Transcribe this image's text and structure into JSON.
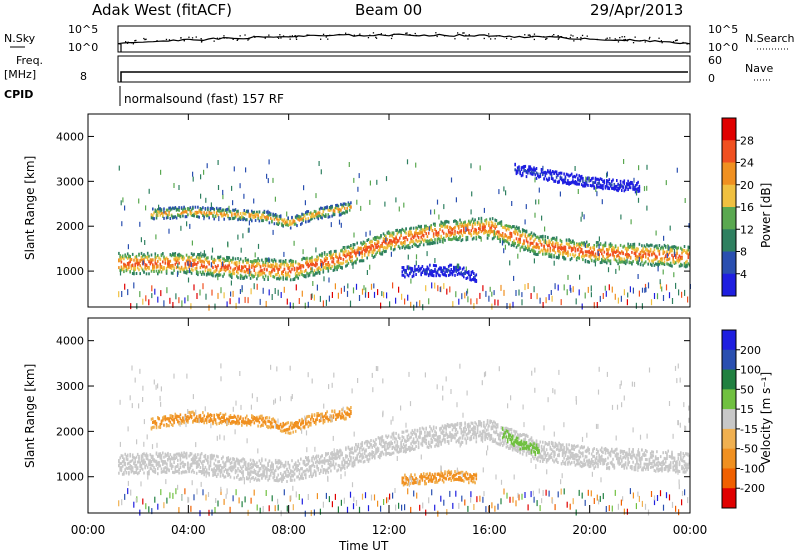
{
  "header": {
    "station": "Adak West (fitACF)",
    "beam": "Beam 00",
    "date": "29/Apr/2013"
  },
  "top_panels": {
    "nsky_label": "N.Sky",
    "nsky_ticks": [
      "10^5",
      "10^0"
    ],
    "nsearch_label": "N.Search",
    "nsearch_ticks": [
      "10^5",
      "10^0"
    ],
    "freq_label_1": "Freq.",
    "freq_label_2": "[MHz]",
    "freq_ticks": [
      "8"
    ],
    "nave_label": "Nave",
    "nave_ticks": [
      "60",
      "0"
    ],
    "cpid_label": "CPID",
    "cpid_text": "normalsound (fast) 157 RF"
  },
  "colors": {
    "power_scale": [
      "#1f1fe0",
      "#2a4fb0",
      "#2f8060",
      "#5aa850",
      "#f0c040",
      "#f09020",
      "#f05020",
      "#e00000"
    ],
    "velocity_scale": [
      "#e00000",
      "#f06000",
      "#f09020",
      "#f0b050",
      "#c8c8c8",
      "#70c040",
      "#208040",
      "#2a4fb0",
      "#1f1fe0"
    ],
    "background_scatter": "#c8c8c8"
  },
  "chart_data": [
    {
      "type": "heatmap",
      "title": "Power",
      "ylabel": "Slant Range [km]",
      "xlabel": "",
      "xlim": [
        0,
        24
      ],
      "ylim": [
        200,
        4500
      ],
      "y_ticks": [
        "1000",
        "2000",
        "3000",
        "4000"
      ],
      "colorbar_label": "Power [dB]",
      "colorbar_ticks": [
        "28",
        "24",
        "20",
        "16",
        "12",
        "8",
        "4"
      ],
      "colorbar_range": [
        0,
        30
      ],
      "bands": [
        {
          "name": "main-echo",
          "x": [
            1.2,
            4,
            6,
            8,
            10,
            12,
            14,
            16,
            18,
            20,
            22,
            24
          ],
          "y": [
            1200,
            1200,
            1100,
            1050,
            1300,
            1700,
            1900,
            2000,
            1600,
            1450,
            1400,
            1350
          ],
          "value": 26
        },
        {
          "name": "upper-echo",
          "x": [
            2.5,
            4,
            5.5,
            7,
            8,
            9,
            10.5
          ],
          "y": [
            2300,
            2350,
            2300,
            2250,
            2100,
            2300,
            2450
          ],
          "value": 22
        },
        {
          "name": "patch",
          "x": [
            12.5,
            13.5,
            14.5,
            15.5
          ],
          "y": [
            1000,
            1050,
            1050,
            900
          ],
          "value": 6
        },
        {
          "name": "far-range",
          "x": [
            17,
            18,
            19,
            20,
            21,
            22
          ],
          "y": [
            3300,
            3200,
            3100,
            3000,
            2950,
            2900
          ],
          "value": 6
        }
      ]
    },
    {
      "type": "heatmap",
      "title": "Velocity",
      "ylabel": "Slant Range [km]",
      "xlabel": "Time UT",
      "xlim": [
        0,
        24
      ],
      "ylim": [
        200,
        4500
      ],
      "x_ticks": [
        "00:00",
        "04:00",
        "08:00",
        "12:00",
        "16:00",
        "20:00",
        "00:00"
      ],
      "y_ticks": [
        "1000",
        "2000",
        "3000",
        "4000"
      ],
      "colorbar_label": "Velocity [m s⁻¹]",
      "colorbar_ticks": [
        "200",
        "100",
        "50",
        "15",
        "-15",
        "-50",
        "-100",
        "-200"
      ],
      "colorbar_range": [
        -250,
        250
      ],
      "bands": [
        {
          "name": "main-echo",
          "x": [
            1.2,
            4,
            6,
            8,
            10,
            12,
            14,
            16,
            18,
            20,
            22,
            24
          ],
          "y": [
            1300,
            1350,
            1200,
            1150,
            1400,
            1750,
            1950,
            2050,
            1600,
            1450,
            1400,
            1350
          ],
          "value": 0
        },
        {
          "name": "upper-echo",
          "x": [
            2.5,
            4,
            5.5,
            7,
            8,
            9,
            10.5
          ],
          "y": [
            2200,
            2350,
            2300,
            2250,
            2100,
            2300,
            2450
          ],
          "value": -40
        },
        {
          "name": "patch",
          "x": [
            12.5,
            13.5,
            14.5,
            15.5
          ],
          "y": [
            950,
            1000,
            1050,
            1000
          ],
          "value": -60
        },
        {
          "name": "green-slope",
          "x": [
            16.5,
            17,
            17.5,
            18
          ],
          "y": [
            2000,
            1800,
            1700,
            1600
          ],
          "value": 40
        }
      ]
    }
  ]
}
